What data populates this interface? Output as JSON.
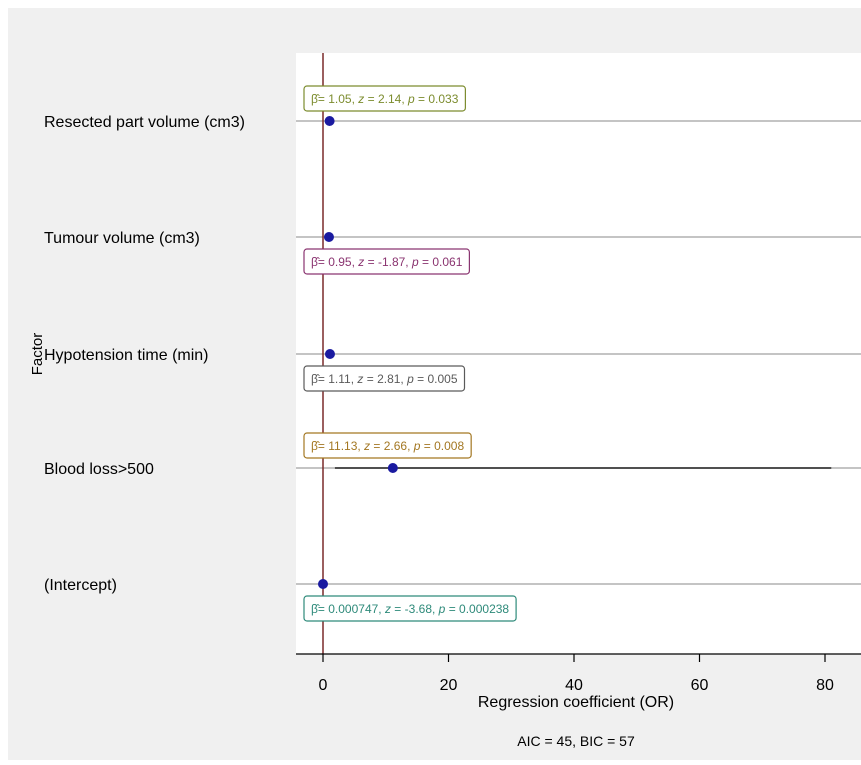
{
  "chart_data": {
    "type": "forest",
    "title": "",
    "xlabel": "Regression coefficient (OR)",
    "ylabel": "Factor",
    "xlim": [
      -4,
      85
    ],
    "xticks": [
      0,
      20,
      40,
      60,
      80
    ],
    "reference_line": 0,
    "grid": "horizontal",
    "footnote": "AIC = 45, BIC = 57",
    "factors": [
      {
        "name": "Resected part volume (cm3)",
        "estimate": 1.05,
        "ci_low": 1.0,
        "ci_high": 1.1,
        "annotation": {
          "beta": "= 1.05,",
          "z": "= 2.14,",
          "p": "= 0.033"
        },
        "color": "#7c8c2e",
        "label_pos": "above"
      },
      {
        "name": "Tumour volume (cm3)",
        "estimate": 0.95,
        "ci_low": 0.9,
        "ci_high": 1.0,
        "annotation": {
          "beta": "= 0.95,",
          "z": "= -1.87,",
          "p": "= 0.061"
        },
        "color": "#8a3470",
        "label_pos": "below"
      },
      {
        "name": "Hypotension time (min)",
        "estimate": 1.11,
        "ci_low": 1.03,
        "ci_high": 1.19,
        "annotation": {
          "beta": "= 1.11,",
          "z": "= 2.81,",
          "p": "= 0.005"
        },
        "color": "#5a5a5a",
        "label_pos": "below"
      },
      {
        "name": "Blood loss>500",
        "estimate": 11.13,
        "ci_low": 1.9,
        "ci_high": 81,
        "annotation": {
          "beta": "= 11.13,",
          "z": "= 2.66,",
          "p": "= 0.008"
        },
        "color": "#a37722",
        "label_pos": "above"
      },
      {
        "name": "(Intercept)",
        "estimate": 0.000747,
        "ci_low": 0.0,
        "ci_high": 0.01,
        "annotation": {
          "beta": "= 0.000747,",
          "z": "= -3.68,",
          "p": "= 0.000238"
        },
        "color": "#2e8a7a",
        "label_pos": "below"
      }
    ],
    "colors": {
      "background": "#f0f0f0",
      "plot": "#ffffff",
      "refline": "#7a2a2a",
      "point": "#1a1aa0",
      "grid": "#b0b0b0"
    }
  }
}
